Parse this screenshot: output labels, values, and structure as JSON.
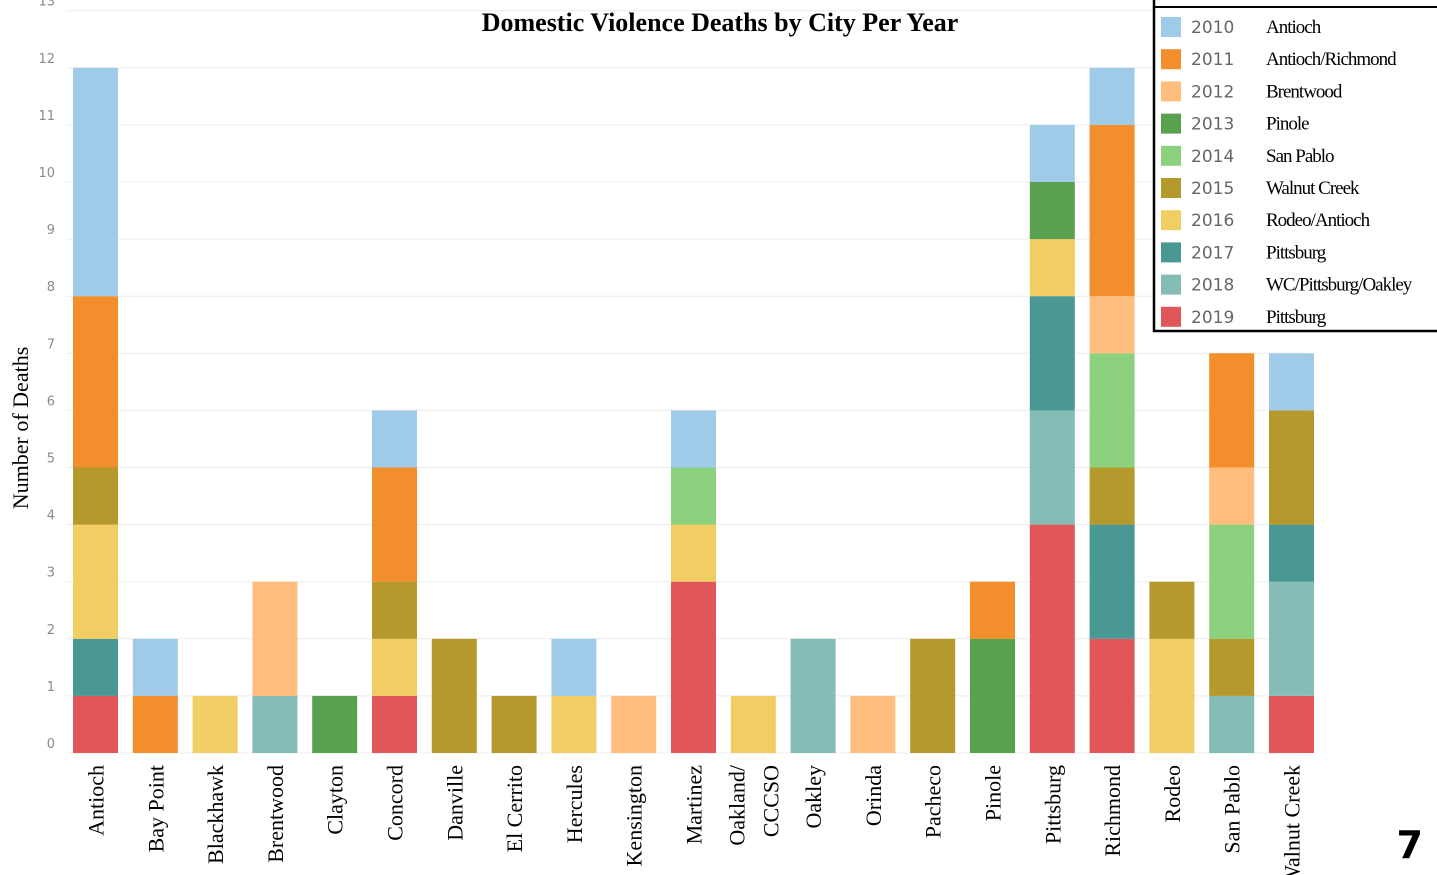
{
  "page_number": "7",
  "chart_data": {
    "type": "bar",
    "stacked": true,
    "title": "Domestic Violence Deaths by City Per Year",
    "ylabel": "Number of Deaths",
    "xlabel": "",
    "ylim": [
      0,
      13
    ],
    "yticks": [
      "0",
      "1",
      "2",
      "3",
      "4",
      "5",
      "6",
      "7",
      "8",
      "9",
      "10",
      "11",
      "12",
      "13"
    ],
    "grid": true,
    "legend_position": "top-right",
    "categories": [
      "Antioch",
      "Bay Point",
      "Blackhawk",
      "Brentwood",
      "Clayton",
      "Concord",
      "Danville",
      "El Cerrito",
      "Hercules",
      "Kensington",
      "Martinez",
      "Oakland/ CCCSO",
      "Oakley",
      "Orinda",
      "Pacheco",
      "Pinole",
      "Pittsburg",
      "Richmond",
      "Rodeo",
      "San Pablo",
      "Walnut Creek"
    ],
    "category_lines": [
      [
        "Antioch"
      ],
      [
        "Bay Point"
      ],
      [
        "Blackhawk"
      ],
      [
        "Brentwood"
      ],
      [
        "Clayton"
      ],
      [
        "Concord"
      ],
      [
        "Danville"
      ],
      [
        "El Cerrito"
      ],
      [
        "Hercules"
      ],
      [
        "Kensington"
      ],
      [
        "Martinez"
      ],
      [
        "Oakland/",
        "CCCSO"
      ],
      [
        "Oakley"
      ],
      [
        "Orinda"
      ],
      [
        "Pacheco"
      ],
      [
        "Pinole"
      ],
      [
        "Pittsburg"
      ],
      [
        "Richmond"
      ],
      [
        "Rodeo"
      ],
      [
        "San Pablo"
      ],
      [
        "Walnut Creek"
      ]
    ],
    "series": [
      {
        "name": "2019",
        "color": "#e15759",
        "values": [
          1,
          0,
          0,
          0,
          0,
          1,
          0,
          0,
          0,
          0,
          3,
          0,
          0,
          0,
          0,
          0,
          4,
          2,
          0,
          0,
          1
        ]
      },
      {
        "name": "2018",
        "color": "#86bcb6",
        "values": [
          0,
          0,
          0,
          1,
          0,
          0,
          0,
          0,
          0,
          0,
          0,
          0,
          2,
          0,
          0,
          0,
          2,
          0,
          0,
          1,
          2
        ]
      },
      {
        "name": "2017",
        "color": "#499894",
        "values": [
          1,
          0,
          0,
          0,
          0,
          0,
          0,
          0,
          0,
          0,
          0,
          0,
          0,
          0,
          0,
          0,
          2,
          2,
          0,
          0,
          1
        ]
      },
      {
        "name": "2016",
        "color": "#f1ce63",
        "values": [
          2,
          0,
          1,
          0,
          0,
          1,
          0,
          0,
          1,
          0,
          1,
          1,
          0,
          0,
          0,
          0,
          1,
          0,
          2,
          0,
          0
        ]
      },
      {
        "name": "2015",
        "color": "#b6992d",
        "values": [
          1,
          0,
          0,
          0,
          0,
          1,
          2,
          1,
          0,
          0,
          0,
          0,
          0,
          0,
          2,
          0,
          0,
          1,
          1,
          1,
          2
        ]
      },
      {
        "name": "2014",
        "color": "#8cd17d",
        "values": [
          0,
          0,
          0,
          0,
          0,
          0,
          0,
          0,
          0,
          0,
          1,
          0,
          0,
          0,
          0,
          0,
          0,
          2,
          0,
          2,
          0
        ]
      },
      {
        "name": "2013",
        "color": "#59a14f",
        "values": [
          0,
          0,
          0,
          0,
          1,
          0,
          0,
          0,
          0,
          0,
          0,
          0,
          0,
          0,
          0,
          2,
          1,
          0,
          0,
          0,
          0
        ]
      },
      {
        "name": "2012",
        "color": "#ffbe7d",
        "values": [
          0,
          0,
          0,
          2,
          0,
          0,
          0,
          0,
          0,
          1,
          0,
          0,
          0,
          1,
          0,
          0,
          0,
          1,
          0,
          1,
          0
        ]
      },
      {
        "name": "2011",
        "color": "#f28e2b",
        "values": [
          3,
          1,
          0,
          0,
          0,
          2,
          0,
          0,
          0,
          0,
          0,
          0,
          0,
          0,
          0,
          1,
          0,
          3,
          0,
          2,
          0
        ]
      },
      {
        "name": "2010",
        "color": "#a0cbe8",
        "values": [
          4,
          1,
          0,
          0,
          0,
          1,
          0,
          0,
          1,
          0,
          1,
          0,
          0,
          0,
          0,
          0,
          1,
          1,
          0,
          0,
          1
        ]
      }
    ],
    "legend": [
      {
        "year": "2010",
        "city": "Antioch",
        "color": "#a0cbe8"
      },
      {
        "year": "2011",
        "city": "Antioch/Richmond",
        "color": "#f28e2b"
      },
      {
        "year": "2012",
        "city": "Brentwood",
        "color": "#ffbe7d"
      },
      {
        "year": "2013",
        "city": "Pinole",
        "color": "#59a14f"
      },
      {
        "year": "2014",
        "city": "San Pablo",
        "color": "#8cd17d"
      },
      {
        "year": "2015",
        "city": "Walnut Creek",
        "color": "#b6992d"
      },
      {
        "year": "2016",
        "city": "Rodeo/Antioch",
        "color": "#f1ce63"
      },
      {
        "year": "2017",
        "city": "Pittsburg",
        "color": "#499894"
      },
      {
        "year": "2018",
        "city": "WC/Pittsburg/Oakley",
        "color": "#86bcb6"
      },
      {
        "year": "2019",
        "city": "Pittsburg",
        "color": "#e15759"
      }
    ]
  }
}
